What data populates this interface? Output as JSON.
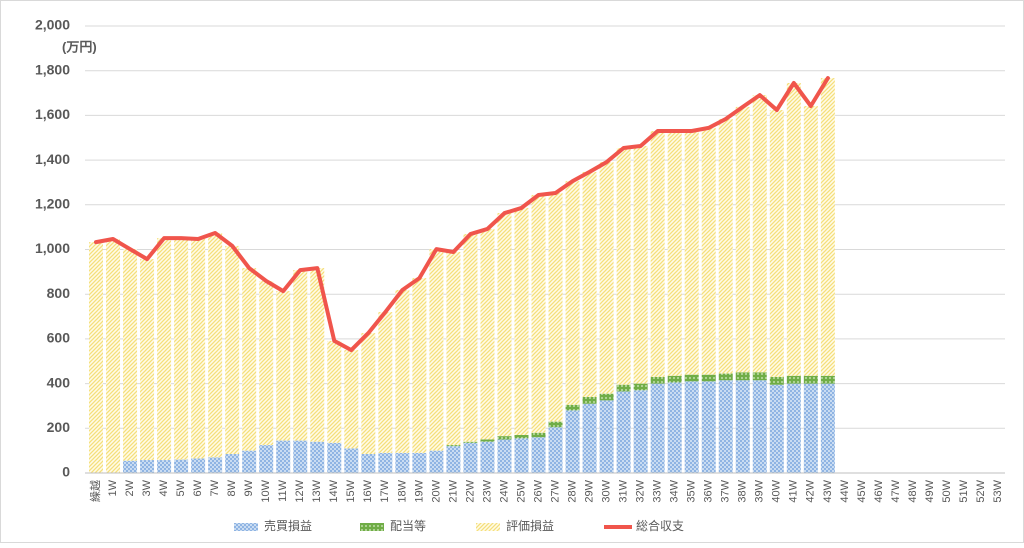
{
  "chart_data": {
    "type": "bar",
    "stacked": true,
    "y_label": "(万円)",
    "categories": [
      "繰越",
      "1W",
      "2W",
      "3W",
      "4W",
      "5W",
      "6W",
      "7W",
      "8W",
      "9W",
      "10W",
      "11W",
      "12W",
      "13W",
      "14W",
      "15W",
      "16W",
      "17W",
      "18W",
      "19W",
      "20W",
      "21W",
      "22W",
      "23W",
      "24W",
      "25W",
      "26W",
      "27W",
      "28W",
      "29W",
      "30W",
      "31W",
      "32W",
      "33W",
      "34W",
      "35W",
      "36W",
      "37W",
      "38W",
      "39W",
      "40W",
      "41W",
      "42W",
      "43W",
      "44W",
      "45W",
      "46W",
      "47W",
      "48W",
      "49W",
      "50W",
      "51W",
      "52W",
      "53W"
    ],
    "series": [
      {
        "name": "売買損益",
        "color": "#8fb4e3",
        "values": [
          0,
          0,
          55,
          58,
          58,
          60,
          65,
          70,
          85,
          100,
          125,
          145,
          145,
          140,
          135,
          110,
          85,
          90,
          90,
          90,
          100,
          120,
          135,
          140,
          150,
          155,
          160,
          205,
          280,
          310,
          325,
          365,
          370,
          400,
          405,
          410,
          410,
          415,
          415,
          415,
          395,
          400,
          400,
          400,
          null,
          null,
          null,
          null,
          null,
          null,
          null,
          null,
          null,
          null
        ]
      },
      {
        "name": "配当等",
        "color": "#70ad47",
        "values": [
          0,
          0,
          0,
          0,
          0,
          0,
          0,
          0,
          0,
          0,
          0,
          0,
          0,
          0,
          0,
          0,
          0,
          0,
          0,
          0,
          0,
          5,
          5,
          10,
          15,
          15,
          20,
          25,
          25,
          30,
          30,
          30,
          30,
          30,
          30,
          30,
          30,
          30,
          35,
          35,
          35,
          35,
          35,
          35,
          null,
          null,
          null,
          null,
          null,
          null,
          null,
          null,
          null,
          null
        ]
      },
      {
        "name": "評価損益",
        "color": "#f5df7a",
        "values": [
          1033,
          1047,
          947,
          899,
          993,
          991,
          982,
          1004,
          931,
          817,
          734,
          669,
          763,
          777,
          456,
          440,
          541,
          630,
          729,
          782,
          902,
          864,
          929,
          942,
          998,
          1016,
          1064,
          1023,
          1001,
          1007,
          1036,
          1059,
          1063,
          1100,
          1095,
          1090,
          1104,
          1139,
          1188,
          1241,
          1194,
          1310,
          1207,
          1332,
          null,
          null,
          null,
          null,
          null,
          null,
          null,
          null,
          null,
          null
        ]
      },
      {
        "name": "総合収支",
        "type": "line",
        "color": "#f0554c",
        "values": [
          1033,
          1047,
          1002,
          957,
          1051,
          1051,
          1047,
          1074,
          1016,
          917,
          859,
          814,
          908,
          917,
          591,
          550,
          626,
          720,
          819,
          872,
          1002,
          989,
          1069,
          1092,
          1163,
          1186,
          1244,
          1253,
          1306,
          1347,
          1391,
          1454,
          1463,
          1530,
          1530,
          1530,
          1544,
          1584,
          1638,
          1691,
          1624,
          1745,
          1642,
          1767,
          null,
          null,
          null,
          null,
          null,
          null,
          null,
          null,
          null,
          null
        ]
      }
    ],
    "ylim": [
      0,
      2000
    ],
    "yticks": [
      0,
      200,
      400,
      600,
      800,
      {
        "value": 1000,
        "label": "1,000"
      },
      {
        "value": 1200,
        "label": "1,200"
      },
      {
        "value": 1400,
        "label": "1,400"
      },
      {
        "value": 1600,
        "label": "1,600"
      },
      {
        "value": 1800,
        "label": "1,800"
      },
      {
        "value": 2000,
        "label": "2,000"
      }
    ],
    "grid": true,
    "legend": "bottom"
  }
}
